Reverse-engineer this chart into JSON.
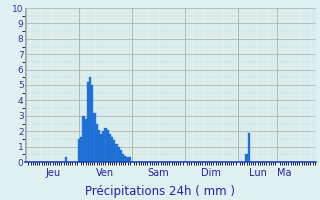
{
  "background_color": "#dff0f0",
  "plot_bg_color": "#dff0f0",
  "grid_color_major": "#aaaaaa",
  "grid_color_minor": "#c8dede",
  "bar_color": "#2277dd",
  "bar_edge_color": "#1155bb",
  "xlabel": "Précipitations 24h ( mm )",
  "ylim": [
    0,
    10
  ],
  "yticks": [
    0,
    1,
    2,
    3,
    4,
    5,
    6,
    7,
    8,
    9,
    10
  ],
  "day_labels": [
    "Jeu",
    "Ven",
    "Sam",
    "Dim",
    "Lun",
    "Ma"
  ],
  "day_tick_positions": [
    0,
    24,
    48,
    72,
    96,
    114
  ],
  "total_bars": 120,
  "precipitation": [
    0,
    0,
    0,
    0,
    0,
    0,
    0,
    0,
    0,
    0,
    0,
    0,
    0,
    0,
    0,
    0,
    0,
    0,
    0.3,
    0,
    0,
    0,
    0,
    0,
    1.5,
    1.6,
    3.0,
    2.8,
    5.2,
    5.5,
    5.0,
    3.2,
    2.5,
    2.1,
    1.8,
    2.0,
    2.2,
    2.1,
    1.8,
    1.6,
    1.4,
    1.2,
    1.0,
    0.8,
    0.5,
    0.4,
    0.3,
    0.3,
    0,
    0,
    0,
    0,
    0,
    0,
    0,
    0,
    0,
    0,
    0,
    0,
    0,
    0,
    0,
    0,
    0,
    0,
    0,
    0,
    0,
    0,
    0,
    0,
    0,
    0,
    0,
    0,
    0,
    0,
    0,
    0,
    0,
    0,
    0,
    0,
    0,
    0,
    0,
    0,
    0,
    0,
    0,
    0,
    0,
    0,
    0,
    0,
    0,
    0,
    0,
    0,
    0.5,
    1.9,
    0,
    0,
    0,
    0,
    0,
    0,
    0,
    0,
    0,
    0,
    0,
    0,
    0,
    0,
    0,
    0,
    0,
    0,
    0,
    0,
    0,
    0,
    0,
    0,
    0,
    0,
    0,
    0,
    0,
    0
  ],
  "xlabel_fontsize": 8.5,
  "tick_fontsize": 6.5,
  "day_fontsize": 7
}
